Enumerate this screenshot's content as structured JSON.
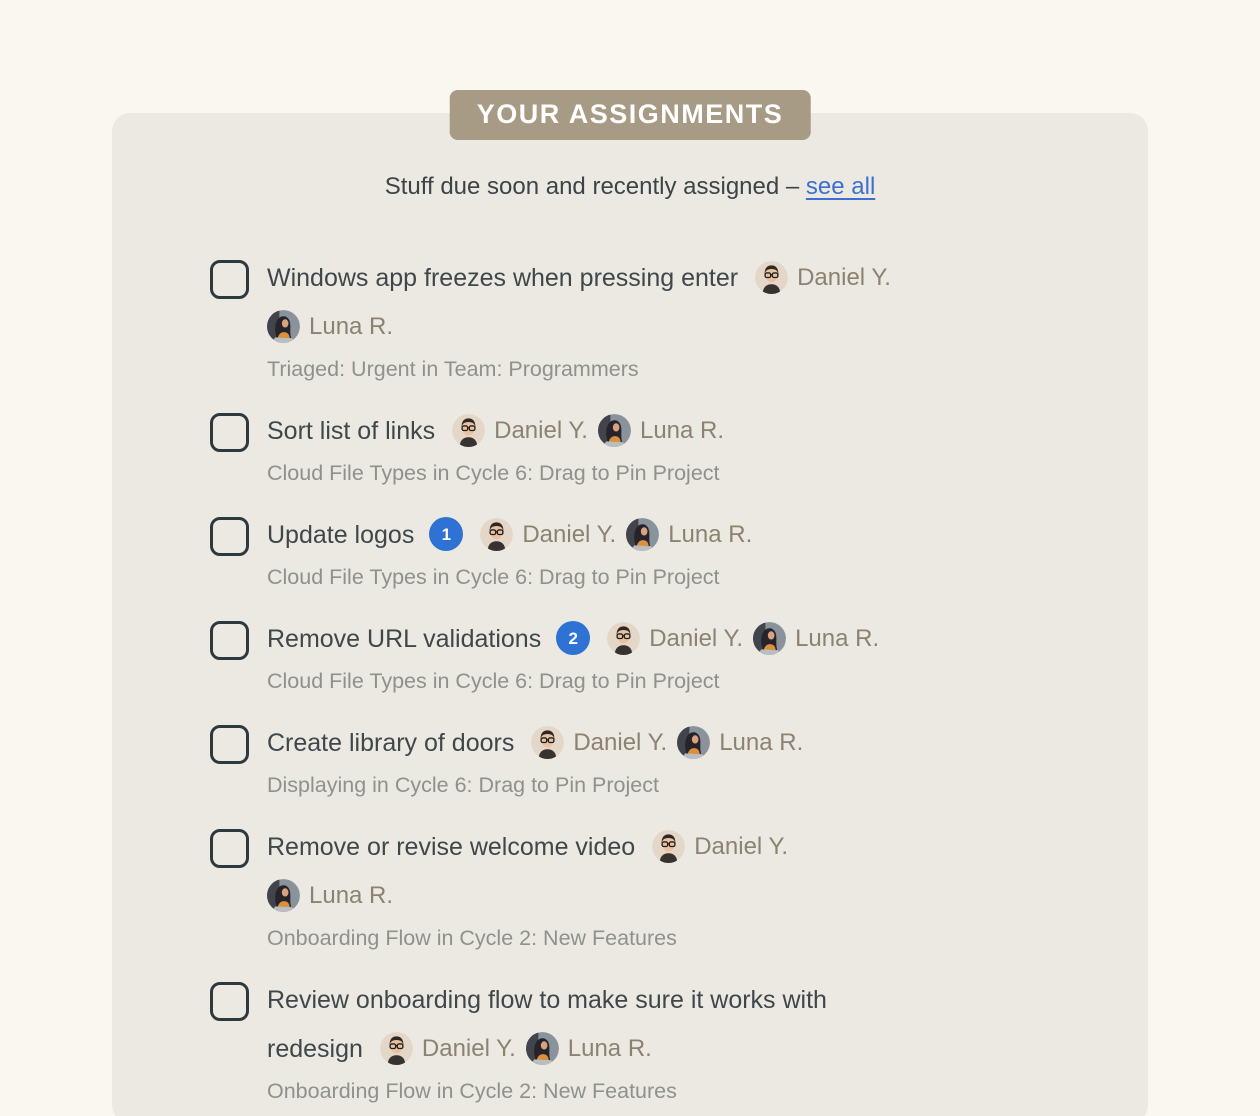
{
  "header": {
    "label": "YOUR ASSIGNMENTS"
  },
  "subtitle": {
    "text": "Stuff due soon and recently assigned –",
    "link_label": "see all"
  },
  "people": {
    "daniel": "Daniel Y.",
    "luna": "Luna R."
  },
  "colors": {
    "page_bg": "#faf7f1",
    "card_bg": "#ebe9e2",
    "header_badge_bg": "#a79b86",
    "header_badge_text": "#ffffff",
    "link_blue": "#3e6fd0",
    "count_badge_blue": "#2e72d3",
    "title_text": "#40474b",
    "meta_text": "#8f918c",
    "assignee_name_text": "#8c8271",
    "checkbox_border": "#2e393e"
  },
  "tasks": [
    {
      "lines": [
        {
          "text": "Windows app freezes when pressing enter",
          "assignees": [
            "daniel"
          ]
        },
        {
          "assignees": [
            "luna"
          ]
        }
      ],
      "meta": "Triaged: Urgent in Team: Programmers"
    },
    {
      "lines": [
        {
          "text": "Sort list of links",
          "assignees": [
            "daniel",
            "luna"
          ]
        }
      ],
      "meta": "Cloud File Types in Cycle 6: Drag to Pin Project"
    },
    {
      "lines": [
        {
          "text": "Update logos",
          "badge": "1",
          "assignees": [
            "daniel",
            "luna"
          ]
        }
      ],
      "meta": "Cloud File Types in Cycle 6: Drag to Pin Project"
    },
    {
      "lines": [
        {
          "text": "Remove URL validations",
          "badge": "2",
          "assignees": [
            "daniel",
            "luna"
          ]
        }
      ],
      "meta": "Cloud File Types in Cycle 6: Drag to Pin Project"
    },
    {
      "lines": [
        {
          "text": "Create library of doors",
          "assignees": [
            "daniel",
            "luna"
          ]
        }
      ],
      "meta": "Displaying in Cycle 6: Drag to Pin Project"
    },
    {
      "lines": [
        {
          "text": "Remove or revise welcome video",
          "assignees": [
            "daniel"
          ]
        },
        {
          "assignees": [
            "luna"
          ]
        }
      ],
      "meta": "Onboarding Flow in Cycle 2: New Features"
    },
    {
      "lines": [
        {
          "text": "Review onboarding flow to make sure it works with"
        },
        {
          "text": "redesign",
          "assignees": [
            "daniel",
            "luna"
          ]
        }
      ],
      "meta": "Onboarding Flow in Cycle 2: New Features"
    }
  ]
}
